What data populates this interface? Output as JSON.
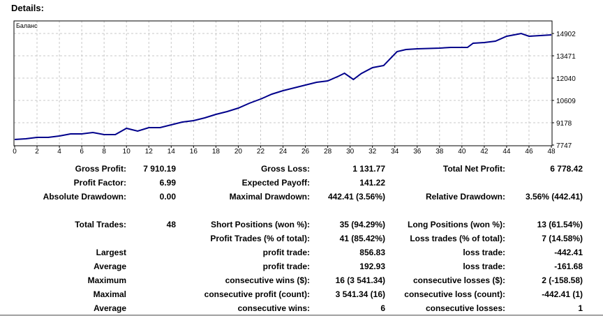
{
  "header": {
    "title": "Details:"
  },
  "chart_data": {
    "type": "line",
    "title": "Баланс",
    "series": [
      {
        "name": "Баланс",
        "color": "#00008b",
        "x": [
          0,
          1,
          2,
          3,
          4,
          5,
          6,
          7,
          8,
          9,
          10,
          11,
          12,
          13,
          14,
          15,
          16,
          17,
          18,
          19,
          20,
          21,
          22,
          23,
          24,
          25,
          26,
          27,
          28,
          29,
          29.5,
          30.3,
          31,
          32,
          33,
          34.2,
          35,
          36,
          37,
          38,
          39,
          40,
          40.5,
          41,
          42,
          43,
          44,
          45,
          45.3,
          46,
          47,
          48
        ],
        "y": [
          8105,
          8150,
          8239,
          8239,
          8328,
          8463,
          8463,
          8552,
          8418,
          8418,
          8820,
          8641,
          8865,
          8865,
          9044,
          9223,
          9312,
          9491,
          9715,
          9894,
          10117,
          10430,
          10698,
          11012,
          11235,
          11414,
          11593,
          11771,
          11861,
          12174,
          12353,
          11950,
          12330,
          12711,
          12845,
          13739,
          13873,
          13918,
          13940,
          13963,
          14007,
          14007,
          14007,
          14276,
          14320,
          14410,
          14723,
          14857,
          14902,
          14723,
          14767,
          14812
        ]
      }
    ],
    "xlim": [
      0,
      48
    ],
    "ylim": [
      7747,
      15300
    ],
    "x_ticks": [
      "0",
      "2",
      "4",
      "6",
      "8",
      "10",
      "12",
      "14",
      "16",
      "18",
      "20",
      "22",
      "24",
      "26",
      "28",
      "30",
      "32",
      "34",
      "36",
      "38",
      "40",
      "42",
      "44",
      "46",
      "48"
    ],
    "y_ticks": [
      "7747",
      "9178",
      "10609",
      "12040",
      "13471",
      "14902"
    ],
    "grid": true
  },
  "stats": {
    "rows": [
      {
        "l1": "Gross Profit:",
        "v1": "7 910.19",
        "l2": "Gross Loss:",
        "v2": "1 131.77",
        "l3": "Total Net Profit:",
        "v3": "6 778.42"
      },
      {
        "l1": "Profit Factor:",
        "v1": "6.99",
        "l2": "Expected Payoff:",
        "v2": "141.22",
        "l3": "",
        "v3": ""
      },
      {
        "l1": "Absolute Drawdown:",
        "v1": "0.00",
        "l2": "Maximal Drawdown:",
        "v2": "442.41 (3.56%)",
        "l3": "Relative Drawdown:",
        "v3": "3.56% (442.41)"
      },
      {
        "l1": "Total Trades:",
        "v1": "48",
        "l2": "Short Positions (won %):",
        "v2": "35 (94.29%)",
        "l3": "Long Positions (won %):",
        "v3": "13 (61.54%)"
      },
      {
        "l1": "",
        "v1": "",
        "l2": "Profit Trades (% of total):",
        "v2": "41 (85.42%)",
        "l3": "Loss trades (% of total):",
        "v3": "7 (14.58%)"
      },
      {
        "l1": "Largest",
        "v1": "",
        "l2": "profit trade:",
        "v2": "856.83",
        "l3": "loss trade:",
        "v3": "-442.41"
      },
      {
        "l1": "Average",
        "v1": "",
        "l2": "profit trade:",
        "v2": "192.93",
        "l3": "loss trade:",
        "v3": "-161.68"
      },
      {
        "l1": "Maximum",
        "v1": "",
        "l2": "consecutive wins ($):",
        "v2": "16 (3 541.34)",
        "l3": "consecutive losses ($):",
        "v3": "2 (-158.58)"
      },
      {
        "l1": "Maximal",
        "v1": "",
        "l2": "consecutive profit (count):",
        "v2": "3 541.34 (16)",
        "l3": "consecutive loss (count):",
        "v3": "-442.41 (1)"
      },
      {
        "l1": "Average",
        "v1": "",
        "l2": "consecutive wins:",
        "v2": "6",
        "l3": "consecutive losses:",
        "v3": "1"
      }
    ]
  }
}
